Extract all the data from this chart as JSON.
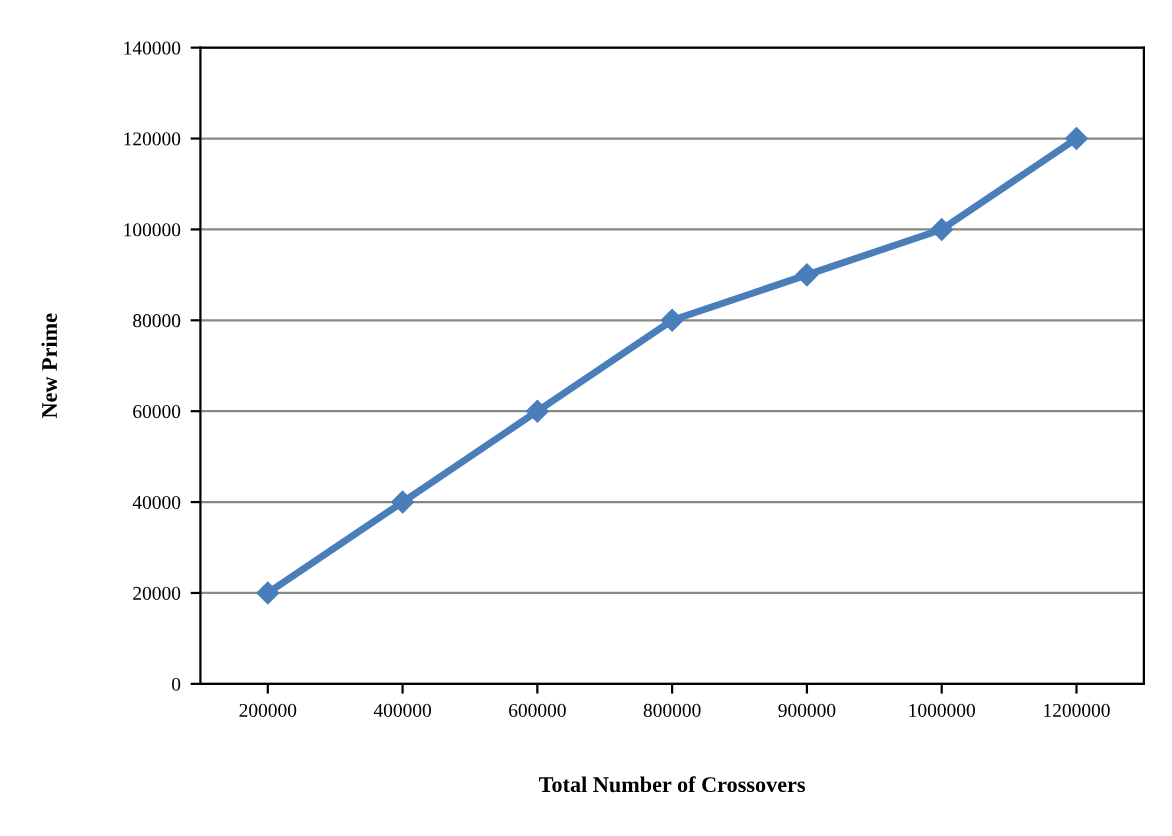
{
  "chart_data": {
    "type": "line",
    "xlabel": "Total Number of Crossovers",
    "ylabel": "New Prime",
    "categories": [
      "200000",
      "400000",
      "600000",
      "800000",
      "900000",
      "1000000",
      "1200000"
    ],
    "series": [
      {
        "color": "#4a7ebb",
        "values": [
          20000,
          40000,
          60000,
          80000,
          90000,
          100000,
          120000
        ]
      }
    ],
    "ylim": [
      0,
      140000
    ],
    "yticks": [
      0,
      20000,
      40000,
      60000,
      80000,
      100000,
      120000,
      140000
    ],
    "grid": "y",
    "marker": "diamond",
    "line_style": "solid"
  }
}
